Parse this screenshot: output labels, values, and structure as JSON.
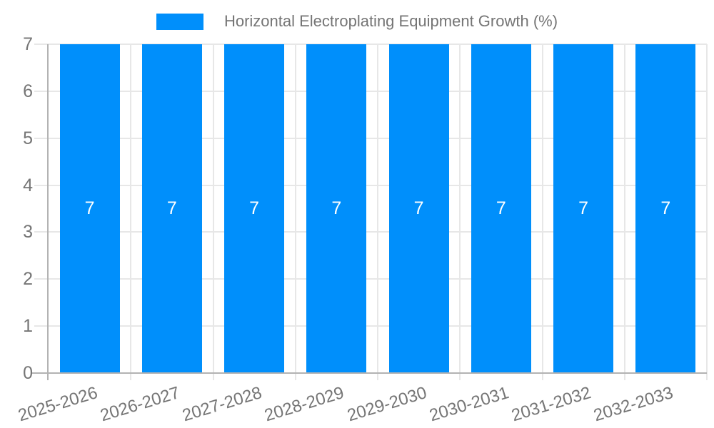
{
  "chart_data": {
    "type": "bar",
    "title": "Horizontal Electroplating Equipment Growth (%)",
    "categories": [
      "2025-2026",
      "2026-2027",
      "2027-2028",
      "2028-2029",
      "2029-2030",
      "2030-2031",
      "2031-2032",
      "2032-2033"
    ],
    "series": [
      {
        "name": "Horizontal Electroplating Equipment Growth (%)",
        "values": [
          7,
          7,
          7,
          7,
          7,
          7,
          7,
          7
        ]
      }
    ],
    "data_labels": [
      "7",
      "7",
      "7",
      "7",
      "7",
      "7",
      "7",
      "7"
    ],
    "xlabel": "",
    "ylabel": "",
    "ylim": [
      0,
      7
    ],
    "yticks": [
      0,
      1,
      2,
      3,
      4,
      5,
      6,
      7
    ],
    "grid": true,
    "legend_position": "top-center",
    "colors": {
      "bar": "#008FFB",
      "data_label": "#ffffff",
      "axis_text": "#757575",
      "grid_line": "#e7e7e7",
      "axis_line": "#b3b3b3",
      "background": "#ffffff"
    }
  },
  "legend": {
    "label": "Horizontal Electroplating Equipment Growth (%)"
  }
}
